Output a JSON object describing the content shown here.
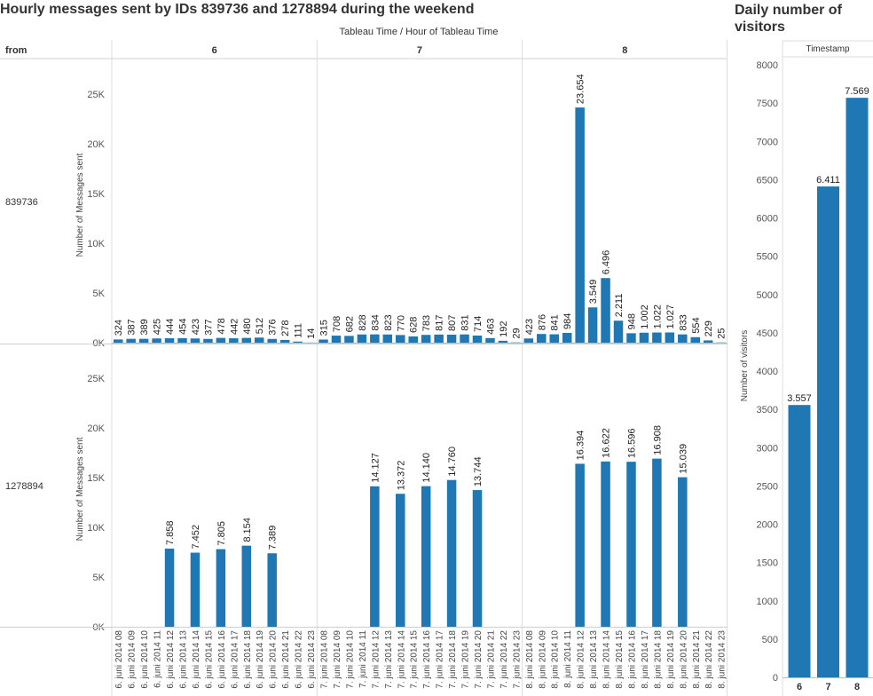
{
  "titles": {
    "left": "Hourly messages sent by IDs 839736 and 1278894 during the weekend",
    "right": "Daily number of visitors"
  },
  "chart_data": [
    {
      "type": "bar",
      "title": "Hourly messages sent by IDs 839736 and 1278894 during the weekend",
      "column_header": "Tableau Time  /  Hour of Tableau Time",
      "row_header": "from",
      "ylabel": "Number of Messages sent",
      "ylim": [
        0,
        28000
      ],
      "yticks": [
        "0K",
        "5K",
        "10K",
        "15K",
        "20K",
        "25K"
      ],
      "days": [
        "6",
        "7",
        "8"
      ],
      "hours": [
        "08",
        "09",
        "10",
        "11",
        "12",
        "13",
        "14",
        "15",
        "16",
        "17",
        "18",
        "19",
        "20",
        "21",
        "22",
        "23"
      ],
      "date_prefix": [
        "6. juni 2014",
        "7. juni 2014",
        "8. juni 2014"
      ],
      "series": [
        {
          "name": "839736",
          "values": [
            [
              324,
              387,
              389,
              425,
              444,
              454,
              423,
              377,
              478,
              442,
              480,
              512,
              376,
              278,
              111,
              14
            ],
            [
              315,
              708,
              682,
              828,
              834,
              823,
              770,
              628,
              783,
              817,
              807,
              831,
              714,
              463,
              192,
              29
            ],
            [
              423,
              876,
              841,
              984,
              23654,
              3549,
              6496,
              2211,
              948,
              1002,
              1022,
              1027,
              833,
              554,
              229,
              25
            ]
          ],
          "labels": [
            [
              "324",
              "387",
              "389",
              "425",
              "444",
              "454",
              "423",
              "377",
              "478",
              "442",
              "480",
              "512",
              "376",
              "278",
              "111",
              "14"
            ],
            [
              "315",
              "708",
              "682",
              "828",
              "834",
              "823",
              "770",
              "628",
              "783",
              "817",
              "807",
              "831",
              "714",
              "463",
              "192",
              "29"
            ],
            [
              "423",
              "876",
              "841",
              "984",
              "23.654",
              "3.549",
              "6.496",
              "2.211",
              "948",
              "1.002",
              "1.022",
              "1.027",
              "833",
              "554",
              "229",
              "25"
            ]
          ]
        },
        {
          "name": "1278894",
          "values": [
            [
              null,
              null,
              null,
              null,
              7858,
              null,
              7452,
              null,
              7805,
              null,
              8154,
              null,
              7389,
              null,
              null,
              null
            ],
            [
              null,
              null,
              null,
              null,
              14127,
              null,
              13372,
              null,
              14140,
              null,
              14760,
              null,
              13744,
              null,
              null,
              null
            ],
            [
              null,
              null,
              null,
              null,
              16394,
              null,
              16622,
              null,
              16596,
              null,
              16908,
              null,
              15039,
              null,
              null,
              null
            ]
          ],
          "labels": [
            [
              null,
              null,
              null,
              null,
              "7.858",
              null,
              "7.452",
              null,
              "7.805",
              null,
              "8.154",
              null,
              "7.389",
              null,
              null,
              null
            ],
            [
              null,
              null,
              null,
              null,
              "14.127",
              null,
              "13.372",
              null,
              "14.140",
              null,
              "14.760",
              null,
              "13.744",
              null,
              null,
              null
            ],
            [
              null,
              null,
              null,
              null,
              "16.394",
              null,
              "16.622",
              null,
              "16.596",
              null,
              "16.908",
              null,
              "15.039",
              null,
              null,
              null
            ]
          ]
        }
      ],
      "color": "#1f77b4"
    },
    {
      "type": "bar",
      "title": "Daily number of visitors",
      "xlabel": "Timestamp",
      "ylabel": "Number of visitors",
      "categories": [
        "6",
        "7",
        "8"
      ],
      "values": [
        3557,
        6411,
        7569
      ],
      "labels": [
        "3.557",
        "6.411",
        "7.569"
      ],
      "ylim": [
        0,
        8200
      ],
      "yticks": [
        "0",
        "500",
        "1000",
        "1500",
        "2000",
        "2500",
        "3000",
        "3500",
        "4000",
        "4500",
        "5000",
        "5500",
        "6000",
        "6500",
        "7000",
        "7500",
        "8000"
      ],
      "color": "#1f77b4"
    }
  ]
}
